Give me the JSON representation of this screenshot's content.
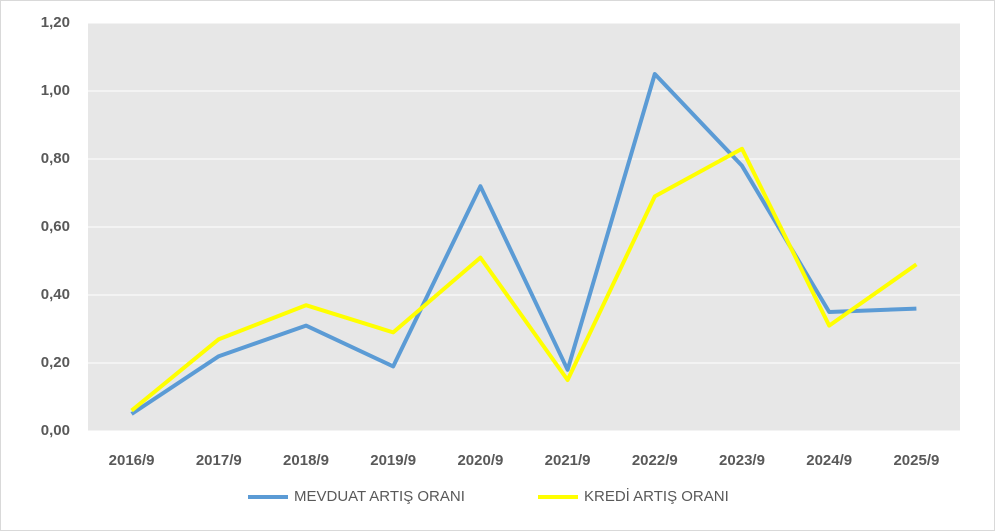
{
  "chart_data": {
    "type": "line",
    "categories": [
      "2016/9",
      "2017/9",
      "2018/9",
      "2019/9",
      "2020/9",
      "2021/9",
      "2022/9",
      "2023/9",
      "2024/9",
      "2025/9"
    ],
    "series": [
      {
        "name": "MEVDUAT ARTIŞ ORANI",
        "color": "#5b9bd5",
        "values": [
          0.05,
          0.22,
          0.31,
          0.19,
          0.72,
          0.18,
          1.05,
          0.78,
          0.35,
          0.36
        ]
      },
      {
        "name": "KREDİ ARTIŞ ORANI",
        "color": "#ffff00",
        "values": [
          0.06,
          0.27,
          0.37,
          0.29,
          0.51,
          0.15,
          0.69,
          0.83,
          0.31,
          0.49
        ]
      }
    ],
    "ylim": [
      0,
      1.2
    ],
    "yticks": [
      {
        "value": 0,
        "label": "0,00"
      },
      {
        "value": 0.2,
        "label": "0,20"
      },
      {
        "value": 0.4,
        "label": "0,40"
      },
      {
        "value": 0.6,
        "label": "0,60"
      },
      {
        "value": 0.8,
        "label": "0,80"
      },
      {
        "value": 1.0,
        "label": "1,00"
      },
      {
        "value": 1.2,
        "label": "1,20"
      }
    ],
    "grid": true,
    "legend": "bottom",
    "plot_background": "#e7e7e7"
  }
}
